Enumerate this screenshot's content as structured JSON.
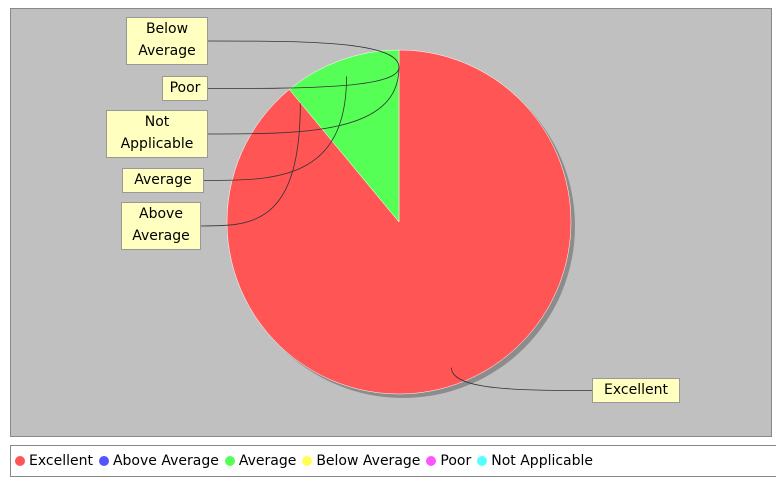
{
  "chart_data": {
    "type": "pie",
    "categories": [
      "Excellent",
      "Above Average",
      "Average",
      "Below Average",
      "Poor",
      "Not Applicable"
    ],
    "values": [
      89,
      0,
      11,
      0,
      0,
      0
    ],
    "colors": [
      "#ff5555",
      "#5555ff",
      "#55ff55",
      "#ffff55",
      "#ff55ff",
      "#55ffff"
    ],
    "legend": "bottom"
  }
}
